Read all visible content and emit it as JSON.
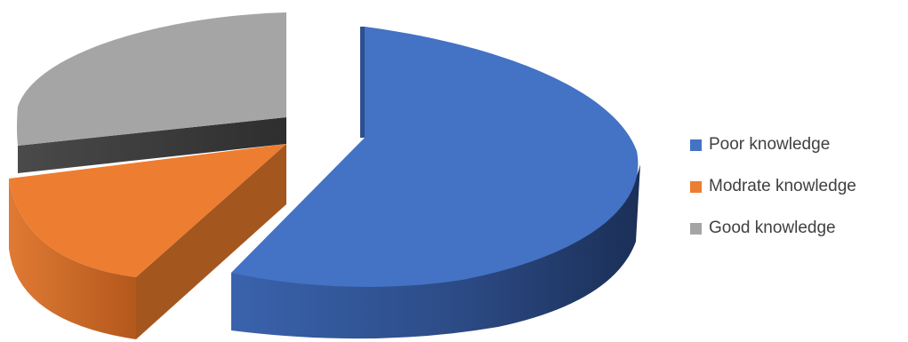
{
  "chart_data": {
    "type": "pie",
    "style": "3d-exploded",
    "title": "",
    "legend_position": "right",
    "series": [
      {
        "name": "Poor knowledge",
        "value": 57,
        "color": "#4472C4"
      },
      {
        "name": "Modrate knowledge",
        "value": 14,
        "color": "#ED7D31"
      },
      {
        "name": "Good knowledge",
        "value": 29,
        "color": "#A5A5A5"
      }
    ]
  }
}
